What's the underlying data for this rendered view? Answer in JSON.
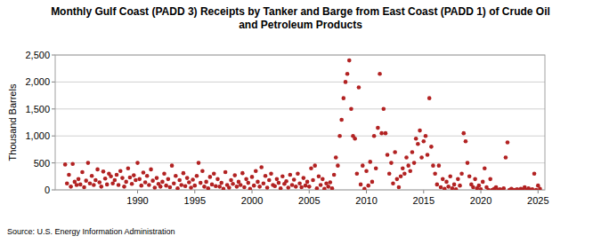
{
  "chart_data": {
    "type": "scatter",
    "title": "Monthly Gulf Coast (PADD 3) Receipts by Tanker and Barge from East Coast (PADD 1) of Crude Oil and Petroleum Products",
    "y_label": "Thousand Barrels",
    "source": "Source: U.S. Energy Information Administration",
    "color": "#b22222",
    "marker": "circle",
    "grid": true,
    "xlim": [
      1982.8,
      2025.6
    ],
    "xticks": [
      1990,
      1995,
      2000,
      2005,
      2010,
      2015,
      2020,
      2025
    ],
    "ylim": [
      0,
      2500
    ],
    "yticks": [
      0,
      500,
      {
        "value": 1000,
        "label": "1,000"
      },
      {
        "value": 1500,
        "label": "1,500"
      },
      {
        "value": 2000,
        "label": "2,000"
      },
      {
        "value": 2500,
        "label": "2,500"
      }
    ],
    "x": [
      1983.67,
      1983.83,
      1984,
      1984.17,
      1984.33,
      1984.5,
      1984.67,
      1984.83,
      1985,
      1985.17,
      1985.33,
      1985.5,
      1985.67,
      1985.83,
      1986,
      1986.17,
      1986.33,
      1986.5,
      1986.67,
      1986.83,
      1987,
      1987.17,
      1987.33,
      1987.5,
      1987.67,
      1987.83,
      1988,
      1988.17,
      1988.33,
      1988.5,
      1988.67,
      1988.83,
      1989,
      1989.17,
      1989.33,
      1989.5,
      1989.67,
      1989.83,
      1990,
      1990.17,
      1990.33,
      1990.5,
      1990.67,
      1990.83,
      1991,
      1991.17,
      1991.33,
      1991.5,
      1991.67,
      1991.83,
      1992,
      1992.17,
      1992.33,
      1992.5,
      1992.67,
      1992.83,
      1993,
      1993.17,
      1993.33,
      1993.5,
      1993.67,
      1993.83,
      1994,
      1994.17,
      1994.33,
      1994.5,
      1994.67,
      1994.83,
      1995,
      1995.17,
      1995.33,
      1995.5,
      1995.67,
      1995.83,
      1996,
      1996.17,
      1996.33,
      1996.5,
      1996.67,
      1996.83,
      1997,
      1997.17,
      1997.33,
      1997.5,
      1997.67,
      1997.83,
      1998,
      1998.17,
      1998.33,
      1998.5,
      1998.67,
      1998.83,
      1999,
      1999.17,
      1999.33,
      1999.5,
      1999.67,
      1999.83,
      2000,
      2000.17,
      2000.33,
      2000.5,
      2000.67,
      2000.83,
      2001,
      2001.17,
      2001.33,
      2001.5,
      2001.67,
      2001.83,
      2002,
      2002.17,
      2002.33,
      2002.5,
      2002.67,
      2002.83,
      2003,
      2003.17,
      2003.33,
      2003.5,
      2003.67,
      2003.83,
      2004,
      2004.17,
      2004.33,
      2004.5,
      2004.67,
      2004.83,
      2005,
      2005.17,
      2005.33,
      2005.5,
      2005.67,
      2005.83,
      2006,
      2006.17,
      2006.33,
      2006.5,
      2006.67,
      2006.83,
      2007,
      2007.17,
      2007.33,
      2007.5,
      2007.67,
      2007.83,
      2008,
      2008.17,
      2008.33,
      2008.5,
      2008.67,
      2008.83,
      2009,
      2009.17,
      2009.33,
      2009.5,
      2009.67,
      2009.83,
      2010,
      2010.17,
      2010.33,
      2010.5,
      2010.67,
      2010.83,
      2011,
      2011.17,
      2011.33,
      2011.5,
      2011.67,
      2011.83,
      2012,
      2012.17,
      2012.33,
      2012.5,
      2012.67,
      2012.83,
      2013,
      2013.17,
      2013.33,
      2013.5,
      2013.67,
      2013.83,
      2014,
      2014.17,
      2014.33,
      2014.5,
      2014.67,
      2014.83,
      2015,
      2015.17,
      2015.33,
      2015.5,
      2015.67,
      2015.83,
      2016,
      2016.17,
      2016.33,
      2016.5,
      2016.67,
      2016.83,
      2017,
      2017.17,
      2017.33,
      2017.5,
      2017.67,
      2017.83,
      2018,
      2018.17,
      2018.33,
      2018.5,
      2018.67,
      2018.83,
      2019,
      2019.17,
      2019.33,
      2019.5,
      2019.67,
      2019.83,
      2020,
      2020.17,
      2020.33,
      2020.5,
      2020.67,
      2020.83,
      2021,
      2021.17,
      2021.33,
      2021.5,
      2021.67,
      2021.83,
      2022,
      2022.17,
      2022.33,
      2022.5,
      2022.67,
      2022.83,
      2023,
      2023.17,
      2023.33,
      2023.5,
      2023.67,
      2023.83,
      2024,
      2024.17,
      2024.33,
      2024.5,
      2024.67,
      2024.83,
      2025,
      2025.17
    ],
    "values": [
      470,
      120,
      280,
      60,
      480,
      150,
      90,
      200,
      100,
      330,
      50,
      170,
      500,
      120,
      260,
      90,
      180,
      380,
      140,
      60,
      340,
      210,
      100,
      300,
      250,
      120,
      180,
      280,
      90,
      350,
      220,
      60,
      150,
      400,
      230,
      110,
      270,
      180,
      500,
      200,
      80,
      320,
      140,
      260,
      90,
      380,
      170,
      40,
      220,
      110,
      60,
      150,
      300,
      80,
      200,
      50,
      450,
      120,
      260,
      30,
      180,
      90,
      310,
      70,
      220,
      140,
      40,
      190,
      80,
      260,
      500,
      130,
      350,
      60,
      150,
      30,
      240,
      100,
      300,
      70,
      200,
      60,
      130,
      20,
      330,
      90,
      40,
      180,
      110,
      270,
      60,
      150,
      90,
      310,
      50,
      200,
      130,
      20,
      240,
      80,
      350,
      150,
      60,
      420,
      120,
      260,
      40,
      180,
      300,
      90,
      70,
      200,
      130,
      30,
      250,
      110,
      160,
      40,
      280,
      90,
      190,
      60,
      300,
      120,
      50,
      220,
      80,
      150,
      60,
      400,
      180,
      450,
      30,
      250,
      90,
      200,
      20,
      120,
      60,
      140,
      30,
      280,
      600,
      450,
      1000,
      1300,
      1700,
      2000,
      2150,
      2400,
      1500,
      1000,
      950,
      300,
      1900,
      100,
      450,
      20,
      350,
      80,
      520,
      150,
      1000,
      400,
      1150,
      2150,
      1050,
      1500,
      1050,
      650,
      300,
      500,
      120,
      700,
      200,
      50,
      250,
      400,
      300,
      600,
      450,
      350,
      700,
      500,
      950,
      850,
      1100,
      600,
      900,
      1000,
      650,
      1700,
      800,
      450,
      300,
      100,
      450,
      50,
      200,
      20,
      150,
      60,
      250,
      30,
      100,
      10,
      200,
      80,
      300,
      1050,
      900,
      500,
      250,
      100,
      50,
      200,
      30,
      80,
      10,
      150,
      400,
      50,
      0,
      200,
      0,
      20,
      50,
      0,
      10,
      0,
      30,
      600,
      880,
      0,
      20,
      0,
      0,
      10,
      0,
      20,
      0,
      50,
      0,
      30,
      0,
      10,
      300,
      0,
      80,
      20
    ]
  }
}
